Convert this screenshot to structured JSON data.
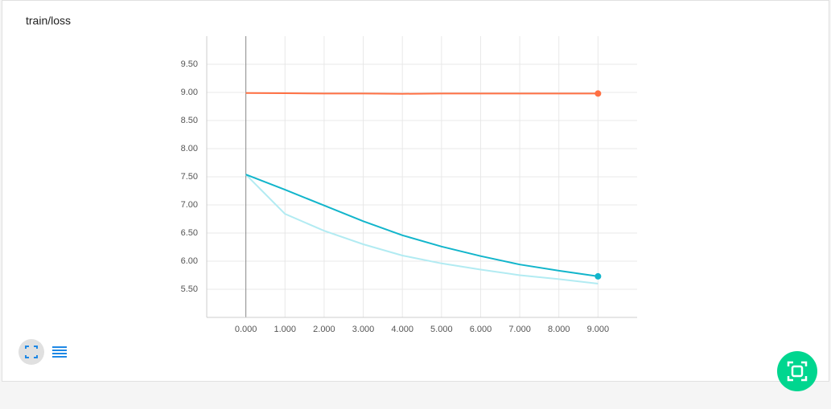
{
  "chart_data": {
    "type": "line",
    "title": "train/loss",
    "x": [
      0,
      1,
      2,
      3,
      4,
      5,
      6,
      7,
      8,
      9
    ],
    "series": [
      {
        "color": "#ff7043",
        "values": [
          8.99,
          8.985,
          8.98,
          8.98,
          8.975,
          8.98,
          8.98,
          8.98,
          8.98,
          8.98
        ],
        "marker_last": true
      },
      {
        "color": "#b2ebf2",
        "values": [
          7.54,
          6.84,
          6.54,
          6.3,
          6.1,
          5.96,
          5.85,
          5.75,
          5.68,
          5.6
        ],
        "marker_last": false
      },
      {
        "color": "#12b5cb",
        "values": [
          7.54,
          7.27,
          6.99,
          6.71,
          6.46,
          6.26,
          6.09,
          5.94,
          5.83,
          5.73
        ],
        "marker_last": true
      }
    ],
    "xlim": [
      -1,
      10
    ],
    "ylim": [
      5,
      10
    ],
    "xticks": [
      {
        "value": 0,
        "label": "0.000"
      },
      {
        "value": 1,
        "label": "1.000"
      },
      {
        "value": 2,
        "label": "2.000"
      },
      {
        "value": 3,
        "label": "3.000"
      },
      {
        "value": 4,
        "label": "4.000"
      },
      {
        "value": 5,
        "label": "5.000"
      },
      {
        "value": 6,
        "label": "6.000"
      },
      {
        "value": 7,
        "label": "7.000"
      },
      {
        "value": 8,
        "label": "8.000"
      },
      {
        "value": 9,
        "label": "9.000"
      }
    ],
    "yticks": [
      {
        "value": 5.5,
        "label": "5.50"
      },
      {
        "value": 6,
        "label": "6.00"
      },
      {
        "value": 6.5,
        "label": "6.50"
      },
      {
        "value": 7,
        "label": "7.00"
      },
      {
        "value": 7.5,
        "label": "7.50"
      },
      {
        "value": 8,
        "label": "8.00"
      },
      {
        "value": 8.5,
        "label": "8.50"
      },
      {
        "value": 9,
        "label": "9.00"
      },
      {
        "value": 9.5,
        "label": "9.50"
      }
    ],
    "grid": true
  }
}
